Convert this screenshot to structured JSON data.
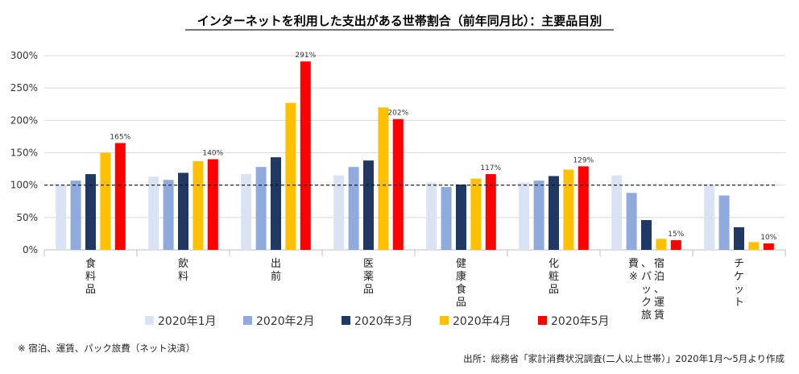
{
  "chart_data": {
    "type": "bar",
    "title": "インターネットを利用した支出がある世帯割合（前年同月比）：主要品目別",
    "ylim": [
      0,
      300
    ],
    "yticks": [
      "0%",
      "50%",
      "100%",
      "150%",
      "200%",
      "250%",
      "300%"
    ],
    "categories": [
      "食料品",
      "飲料",
      "出前",
      "医薬品",
      "健康食品",
      "化粧品",
      "宿泊、運賃、パック旅費※",
      "チケット"
    ],
    "series": [
      {
        "name": "2020年1月",
        "color": "#dae3f3",
        "values": [
          101,
          113,
          117,
          115,
          104,
          104,
          115,
          99
        ]
      },
      {
        "name": "2020年2月",
        "color": "#8faadc",
        "values": [
          107,
          108,
          128,
          128,
          97,
          107,
          88,
          84
        ]
      },
      {
        "name": "2020年3月",
        "color": "#203864",
        "values": [
          117,
          119,
          143,
          138,
          101,
          114,
          46,
          35
        ]
      },
      {
        "name": "2020年4月",
        "color": "#ffc000",
        "values": [
          150,
          137,
          227,
          220,
          110,
          124,
          17,
          12
        ]
      },
      {
        "name": "2020年5月",
        "color": "#ff0000",
        "values": [
          165,
          140,
          291,
          202,
          117,
          129,
          15,
          10
        ]
      }
    ],
    "data_labels": [
      "165%",
      "140%",
      "291%",
      "202%",
      "117%",
      "129%",
      "15%",
      "10%"
    ],
    "reference_line": 100,
    "grid": true,
    "legend_position": "bottom"
  },
  "footnote_left": "※ 宿泊、運賃、パック旅費（ネット決済）",
  "footnote_right": "出所：総務省「家計消費状況調査(二人以上世帯）」2020年1月～5月より作成"
}
